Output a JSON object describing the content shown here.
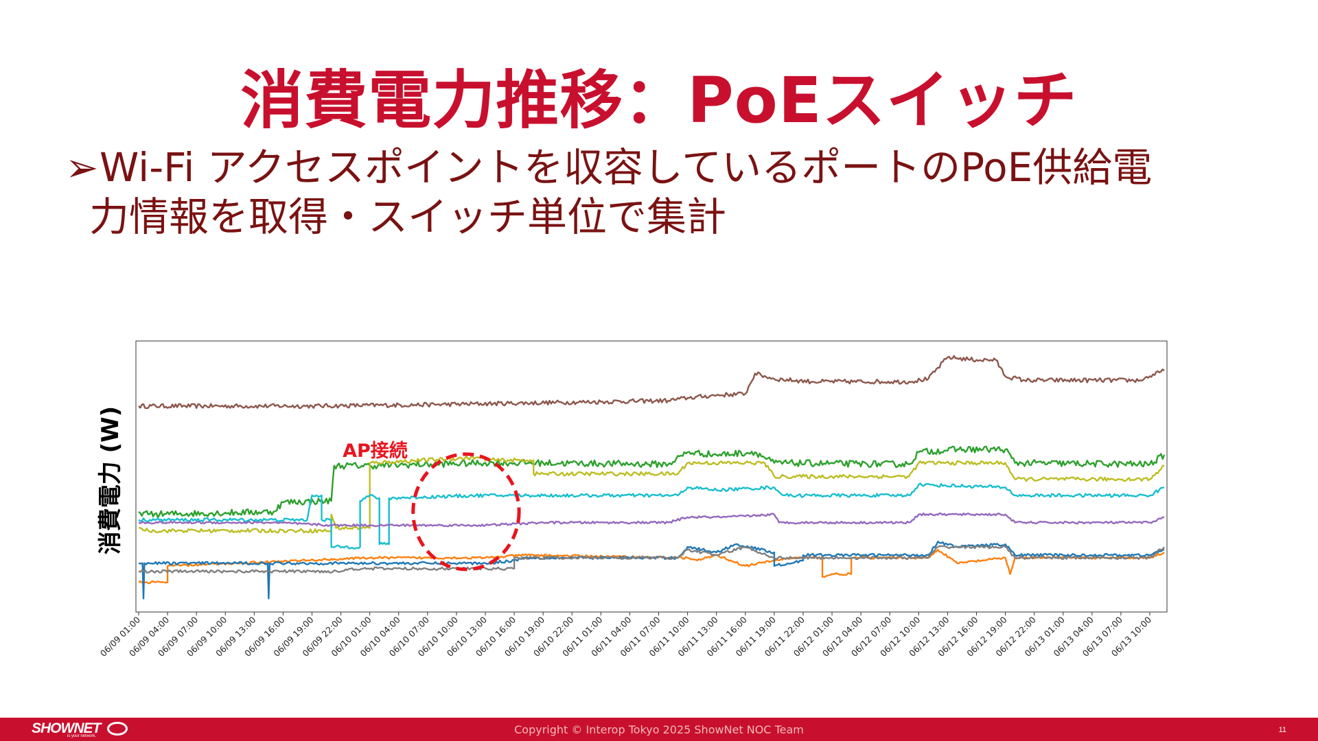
{
  "slide": {
    "title": "消費電力推移：PoEスイッチ",
    "bullet_mark": "➢",
    "bullet_line1": "Wi-Fi アクセスポイントを収容しているポートのPoE供給電",
    "bullet_line2": "力情報を取得・スイッチ単位で集計"
  },
  "footer": {
    "logo": "SHOWNET",
    "tagline": "is your network.",
    "copyright": "Copyright © Interop Tokyo 2025 ShowNet NOC Team",
    "page_number": "11"
  },
  "chart_data": {
    "type": "line",
    "ylabel": "消費電力 (W)",
    "yticks_shown": false,
    "grid": false,
    "annotation": {
      "text": "AP接続",
      "color": "#e8141e",
      "style": "dashed-circle",
      "center_x": 34,
      "spans_x": [
        29,
        40
      ]
    },
    "x_ticks": [
      "06/09 01:00",
      "06/09 04:00",
      "06/09 07:00",
      "06/09 10:00",
      "06/09 13:00",
      "06/09 16:00",
      "06/09 19:00",
      "06/09 22:00",
      "06/10 01:00",
      "06/10 04:00",
      "06/10 07:00",
      "06/10 10:00",
      "06/10 13:00",
      "06/10 16:00",
      "06/10 19:00",
      "06/10 22:00",
      "06/11 01:00",
      "06/11 04:00",
      "06/11 07:00",
      "06/11 10:00",
      "06/11 13:00",
      "06/11 16:00",
      "06/11 19:00",
      "06/11 22:00",
      "06/12 01:00",
      "06/12 04:00",
      "06/12 07:00",
      "06/12 10:00",
      "06/12 13:00",
      "06/12 16:00",
      "06/12 19:00",
      "06/12 22:00",
      "06/13 01:00",
      "06/13 04:00",
      "06/13 07:00",
      "06/13 10:00"
    ],
    "x_range_hours": [
      0,
      106.5
    ],
    "y_range": [
      0,
      100
    ],
    "series": [
      {
        "color": "#8c564b",
        "noise": 0.8,
        "points": [
          [
            0,
            76
          ],
          [
            18,
            76
          ],
          [
            30,
            76.5
          ],
          [
            55,
            78
          ],
          [
            57,
            79
          ],
          [
            60,
            80
          ],
          [
            63,
            80.5
          ],
          [
            64,
            88
          ],
          [
            66,
            86
          ],
          [
            70,
            85
          ],
          [
            80,
            85
          ],
          [
            82,
            86
          ],
          [
            84,
            94
          ],
          [
            87,
            93
          ],
          [
            89,
            93
          ],
          [
            90,
            87
          ],
          [
            92,
            85.5
          ],
          [
            104,
            85.5
          ],
          [
            105,
            87
          ],
          [
            106.5,
            89
          ]
        ]
      },
      {
        "color": "#2ca02c",
        "noise": 1.2,
        "points": [
          [
            0,
            37
          ],
          [
            1,
            36
          ],
          [
            14,
            37
          ],
          [
            15,
            40.5
          ],
          [
            20,
            41
          ],
          [
            20.3,
            54
          ],
          [
            24,
            54
          ],
          [
            36,
            55
          ],
          [
            42,
            55
          ],
          [
            55,
            54.5
          ],
          [
            57,
            59
          ],
          [
            60,
            58
          ],
          [
            64,
            59
          ],
          [
            66,
            55
          ],
          [
            80,
            54.5
          ],
          [
            81,
            59
          ],
          [
            85,
            60
          ],
          [
            90,
            60
          ],
          [
            91,
            55
          ],
          [
            105,
            54.5
          ],
          [
            106.5,
            58
          ]
        ]
      },
      {
        "color": "#bcbd22",
        "noise": 0.7,
        "points": [
          [
            0,
            31
          ],
          [
            1,
            30
          ],
          [
            20,
            30
          ],
          [
            20,
            36
          ],
          [
            20.5,
            31
          ],
          [
            24,
            31
          ],
          [
            24,
            55
          ],
          [
            35,
            57
          ],
          [
            37,
            56
          ],
          [
            41,
            56
          ],
          [
            41,
            51
          ],
          [
            56,
            51
          ],
          [
            57,
            55
          ],
          [
            65,
            55
          ],
          [
            66,
            50
          ],
          [
            80,
            50
          ],
          [
            81,
            55
          ],
          [
            90,
            55
          ],
          [
            91,
            49
          ],
          [
            105,
            49
          ],
          [
            106.5,
            54
          ]
        ]
      },
      {
        "color": "#17becf",
        "noise": 0.6,
        "points": [
          [
            0,
            34
          ],
          [
            14,
            34
          ],
          [
            17.5,
            34
          ],
          [
            18,
            43
          ],
          [
            19,
            43
          ],
          [
            19,
            34
          ],
          [
            20,
            34
          ],
          [
            20,
            24
          ],
          [
            23,
            24
          ],
          [
            23,
            41
          ],
          [
            24,
            43
          ],
          [
            25,
            42
          ],
          [
            25,
            25
          ],
          [
            26,
            25
          ],
          [
            26,
            42
          ],
          [
            35,
            43
          ],
          [
            42,
            43
          ],
          [
            56,
            43
          ],
          [
            57,
            46
          ],
          [
            60,
            45
          ],
          [
            66,
            46
          ],
          [
            67,
            43
          ],
          [
            80,
            43
          ],
          [
            81,
            47
          ],
          [
            90,
            46
          ],
          [
            91,
            43
          ],
          [
            105,
            43
          ],
          [
            106.5,
            46
          ]
        ]
      },
      {
        "color": "#9467bd",
        "noise": 0.4,
        "points": [
          [
            0,
            33
          ],
          [
            14,
            33
          ],
          [
            20,
            32
          ],
          [
            24,
            32
          ],
          [
            36,
            32
          ],
          [
            42,
            33
          ],
          [
            55,
            33
          ],
          [
            57,
            35
          ],
          [
            61,
            35
          ],
          [
            66,
            36
          ],
          [
            66.5,
            33
          ],
          [
            80,
            33
          ],
          [
            81,
            36
          ],
          [
            90,
            36
          ],
          [
            91,
            33
          ],
          [
            105,
            33
          ],
          [
            106.5,
            35
          ]
        ]
      },
      {
        "color": "#ff7f0e",
        "noise": 0.4,
        "points": [
          [
            0,
            11
          ],
          [
            3,
            11
          ],
          [
            3,
            17
          ],
          [
            24,
            20
          ],
          [
            36,
            20
          ],
          [
            40,
            21
          ],
          [
            57,
            20
          ],
          [
            58,
            19
          ],
          [
            60,
            21
          ],
          [
            63,
            17
          ],
          [
            66,
            19
          ],
          [
            68,
            20
          ],
          [
            71,
            20
          ],
          [
            71,
            13
          ],
          [
            72,
            14
          ],
          [
            74,
            14
          ],
          [
            74,
            20
          ],
          [
            82,
            20
          ],
          [
            83,
            23
          ],
          [
            85,
            18
          ],
          [
            90,
            20
          ],
          [
            90.5,
            14
          ],
          [
            91,
            20
          ],
          [
            105,
            20
          ],
          [
            106.5,
            22
          ]
        ]
      },
      {
        "color": "#1f77b4",
        "noise": 0.5,
        "points": [
          [
            0,
            18
          ],
          [
            0.4,
            18
          ],
          [
            0.5,
            5
          ],
          [
            0.6,
            18
          ],
          [
            13,
            18
          ],
          [
            13.4,
            18
          ],
          [
            13.5,
            5
          ],
          [
            13.6,
            18
          ],
          [
            36,
            18
          ],
          [
            39,
            19
          ],
          [
            40,
            20
          ],
          [
            56,
            20
          ],
          [
            57,
            24
          ],
          [
            60,
            22
          ],
          [
            62,
            25
          ],
          [
            66,
            22
          ],
          [
            66,
            17
          ],
          [
            69,
            19
          ],
          [
            69,
            21
          ],
          [
            82,
            21
          ],
          [
            83,
            26
          ],
          [
            85,
            24
          ],
          [
            90,
            25
          ],
          [
            91,
            21
          ],
          [
            105,
            21
          ],
          [
            106.5,
            23
          ]
        ]
      },
      {
        "color": "#7f7f7f",
        "noise": 0.5,
        "points": [
          [
            0,
            15
          ],
          [
            21,
            15
          ],
          [
            22,
            16
          ],
          [
            39,
            16
          ],
          [
            39,
            20
          ],
          [
            56,
            20
          ],
          [
            57,
            23
          ],
          [
            60,
            21
          ],
          [
            63,
            24
          ],
          [
            66,
            20
          ],
          [
            69,
            20
          ],
          [
            72,
            20
          ],
          [
            82,
            20
          ],
          [
            83,
            24
          ],
          [
            86,
            24
          ],
          [
            90,
            24
          ],
          [
            91,
            20
          ],
          [
            105,
            20
          ],
          [
            106.5,
            24
          ]
        ]
      }
    ]
  }
}
